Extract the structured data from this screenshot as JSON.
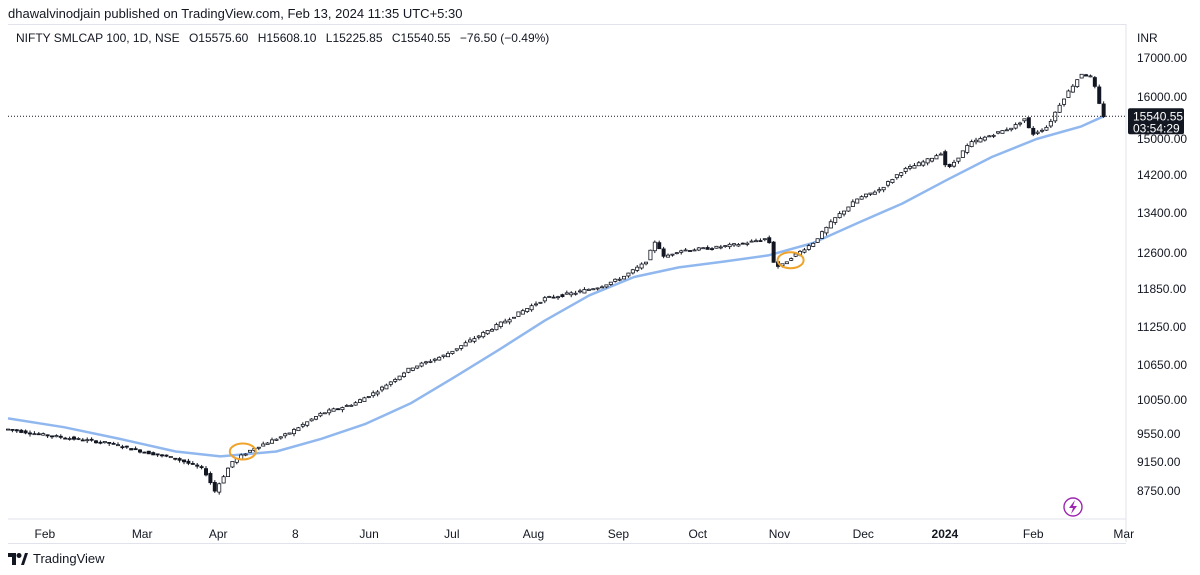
{
  "header": {
    "publisher_line": "dhawalvinodjain published on TradingView.com, Feb 13, 2024 11:35 UTC+5:30"
  },
  "legend": {
    "symbol": "NIFTY SMLCAP 100, 1D, NSE",
    "open": "O15575.60",
    "high": "H15608.10",
    "low": "L15225.85",
    "close": "C15540.55",
    "change": "−76.50 (−0.49%)"
  },
  "price_scale": {
    "currency": "INR",
    "last_price": "15540.55",
    "countdown": "03:54:29"
  },
  "brand": {
    "name": "TradingView"
  },
  "colors": {
    "candle": "#131722",
    "ma_line": "#90b8ef",
    "highlight_circle": "#f0a32a",
    "lightning_icon": "#9c27b0",
    "last_price_tag": "#131722"
  },
  "icons": [
    "tradingview-logo-icon",
    "lightning-icon"
  ],
  "chart_data": {
    "type": "candlestick",
    "symbol": "NIFTY SMLCAP 100",
    "interval": "1D",
    "y_ticks": [
      17000,
      16000,
      15000,
      14200,
      13400,
      12600,
      11850,
      11250,
      10650,
      10050,
      9550,
      9150,
      8750
    ],
    "y_tick_labels": [
      "17000.00",
      "16000.00",
      "15000.00",
      "14200.00",
      "13400.00",
      "12600.00",
      "11850.00",
      "11250.00",
      "10650.00",
      "10050.00",
      "9550.00",
      "9150.00",
      "8750.00"
    ],
    "x_ticks": [
      "Feb",
      "Mar",
      "Apr",
      "8",
      "Jun",
      "Jul",
      "Aug",
      "Sep",
      "Oct",
      "Nov",
      "Dec",
      "2024",
      "Feb",
      "Mar"
    ],
    "x_tick_positions": [
      0.033,
      0.12,
      0.188,
      0.257,
      0.323,
      0.397,
      0.47,
      0.546,
      0.617,
      0.69,
      0.765,
      0.838,
      0.917,
      0.998
    ],
    "approx_close_path": [
      [
        0.0,
        9620
      ],
      [
        0.03,
        9540
      ],
      [
        0.06,
        9480
      ],
      [
        0.09,
        9420
      ],
      [
        0.12,
        9300
      ],
      [
        0.15,
        9200
      ],
      [
        0.175,
        9050
      ],
      [
        0.185,
        8750
      ],
      [
        0.2,
        9150
      ],
      [
        0.22,
        9350
      ],
      [
        0.25,
        9550
      ],
      [
        0.28,
        9850
      ],
      [
        0.31,
        10000
      ],
      [
        0.33,
        10200
      ],
      [
        0.36,
        10600
      ],
      [
        0.39,
        10800
      ],
      [
        0.42,
        11100
      ],
      [
        0.45,
        11400
      ],
      [
        0.48,
        11700
      ],
      [
        0.51,
        11800
      ],
      [
        0.53,
        11900
      ],
      [
        0.55,
        12100
      ],
      [
        0.57,
        12400
      ],
      [
        0.58,
        12900
      ],
      [
        0.585,
        12500
      ],
      [
        0.6,
        12650
      ],
      [
        0.63,
        12700
      ],
      [
        0.66,
        12800
      ],
      [
        0.68,
        12900
      ],
      [
        0.685,
        12400
      ],
      [
        0.69,
        12300
      ],
      [
        0.7,
        12500
      ],
      [
        0.72,
        12800
      ],
      [
        0.74,
        13300
      ],
      [
        0.76,
        13700
      ],
      [
        0.78,
        13900
      ],
      [
        0.8,
        14300
      ],
      [
        0.82,
        14500
      ],
      [
        0.835,
        14700
      ],
      [
        0.84,
        14300
      ],
      [
        0.86,
        14900
      ],
      [
        0.88,
        15100
      ],
      [
        0.9,
        15300
      ],
      [
        0.91,
        15500
      ],
      [
        0.915,
        15100
      ],
      [
        0.93,
        15300
      ],
      [
        0.94,
        15800
      ],
      [
        0.95,
        16200
      ],
      [
        0.96,
        16600
      ],
      [
        0.97,
        16500
      ],
      [
        0.975,
        15900
      ],
      [
        0.98,
        15550
      ]
    ],
    "moving_average_path": [
      [
        0.0,
        9780
      ],
      [
        0.05,
        9650
      ],
      [
        0.1,
        9480
      ],
      [
        0.15,
        9300
      ],
      [
        0.19,
        9230
      ],
      [
        0.24,
        9300
      ],
      [
        0.28,
        9480
      ],
      [
        0.32,
        9700
      ],
      [
        0.36,
        10000
      ],
      [
        0.4,
        10450
      ],
      [
        0.44,
        10900
      ],
      [
        0.48,
        11350
      ],
      [
        0.52,
        11750
      ],
      [
        0.56,
        12100
      ],
      [
        0.6,
        12300
      ],
      [
        0.64,
        12420
      ],
      [
        0.68,
        12550
      ],
      [
        0.72,
        12800
      ],
      [
        0.76,
        13200
      ],
      [
        0.8,
        13600
      ],
      [
        0.84,
        14100
      ],
      [
        0.88,
        14600
      ],
      [
        0.92,
        15000
      ],
      [
        0.96,
        15300
      ],
      [
        0.98,
        15540
      ]
    ],
    "highlight_markers": [
      {
        "x": 0.21,
        "y": 9300
      },
      {
        "x": 0.7,
        "y": 12450
      }
    ]
  }
}
